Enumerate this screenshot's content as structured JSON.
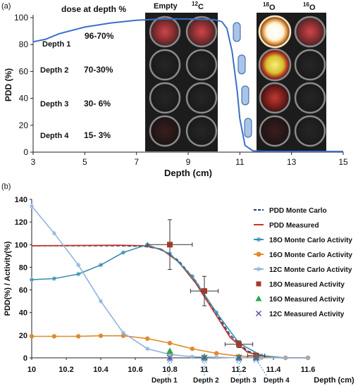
{
  "panel_a": {
    "panel_label": "(a)",
    "header": "dose at depth %",
    "column_labels": {
      "empty": "Empty",
      "c12": "12C",
      "o18": "18O",
      "o16": "16O"
    },
    "depth_rows": [
      {
        "label": "Depth 1",
        "range": "96-70%"
      },
      {
        "label": "Depth 2",
        "range": "70-30%"
      },
      {
        "label": "Depth 3",
        "range": "30- 6%"
      },
      {
        "label": "Depth 4",
        "range": "15- 3%"
      }
    ]
  },
  "panel_b": {
    "panel_label": "(b)",
    "depth_markers": [
      "Depth 1",
      "Depth 2",
      "Depth 3",
      "Depth 4"
    ]
  },
  "chart_data": [
    {
      "type": "line",
      "xlabel": "Depth (cm)",
      "ylabel": "PDD (%)",
      "xlim": [
        3,
        15
      ],
      "ylim": [
        0,
        100
      ],
      "xticks": [
        3,
        5,
        7,
        9,
        11,
        13,
        15
      ],
      "yticks": [
        0,
        20,
        40,
        60,
        80,
        100
      ],
      "series": [
        {
          "color": "#3b6fcc",
          "x": [
            3,
            3.5,
            4,
            5,
            6,
            7,
            8,
            9,
            10,
            10.3,
            10.5,
            10.7,
            10.9,
            11.0,
            11.2,
            11.5,
            12,
            15
          ],
          "y": [
            82,
            84,
            88,
            93,
            96,
            98,
            99,
            99,
            98.5,
            97,
            92,
            75,
            45,
            25,
            5,
            1,
            0.5,
            0.5
          ]
        }
      ]
    },
    {
      "type": "line",
      "xlabel": "Depth (cm)",
      "ylabel": "PDD(%) / Activity(%)",
      "xlim": [
        10,
        11.6
      ],
      "ylim": [
        0,
        140
      ],
      "xticks": [
        "10",
        "10.2",
        "10.4",
        "10.6",
        "10.8",
        "11",
        "11.2",
        "11.4",
        "11.6"
      ],
      "yticks": [
        "0",
        "20",
        "40",
        "60",
        "80",
        "100",
        "120",
        "140"
      ],
      "legend_position": "right",
      "series": [
        {
          "name": "PDD Monte Carlo",
          "color": "#1f3d7a",
          "dash": true,
          "x": [
            10,
            10.5,
            10.65,
            10.75,
            10.85,
            10.95,
            11.05,
            11.15,
            11.25,
            11.35,
            11.45,
            11.6
          ],
          "y": [
            99,
            99,
            98.5,
            96,
            86,
            68,
            44,
            20,
            6,
            1,
            0,
            0
          ]
        },
        {
          "name": "PDD Measured",
          "color": "#c0392b",
          "x": [
            10,
            10.5,
            10.65,
            10.75,
            10.85,
            10.95,
            11.05,
            11.15,
            11.25,
            11.35,
            11.45,
            11.6
          ],
          "y": [
            99,
            99.5,
            99,
            96,
            85,
            66,
            42,
            18,
            5,
            1,
            0,
            0
          ]
        },
        {
          "name": "18O Monte Carlo Activity",
          "color": "#3a8fb0",
          "marker": "star",
          "x": [
            10,
            10.13,
            10.27,
            10.4,
            10.53,
            10.67,
            10.8,
            10.93,
            11.07,
            11.2,
            11.33,
            11.47,
            11.6
          ],
          "y": [
            69,
            70,
            74,
            82,
            93,
            100,
            92,
            72,
            40,
            13,
            2,
            0,
            0
          ]
        },
        {
          "name": "16O Monte Carlo Activity",
          "color": "#e08a2e",
          "marker": "circle",
          "x": [
            10,
            10.13,
            10.27,
            10.4,
            10.53,
            10.67,
            10.8,
            10.93,
            11.07,
            11.2,
            11.33,
            11.47,
            11.6
          ],
          "y": [
            19,
            19,
            19,
            19.5,
            19.5,
            17,
            13,
            8,
            4,
            1.5,
            0.5,
            0,
            0
          ]
        },
        {
          "name": "12C Monte Carlo Activity",
          "color": "#8fb3dd",
          "marker": "star",
          "x": [
            10,
            10.13,
            10.27,
            10.4,
            10.53,
            10.67,
            10.8,
            10.93,
            11.07,
            11.2,
            11.33,
            11.47,
            11.6
          ],
          "y": [
            134,
            110,
            82,
            50,
            22,
            8,
            3,
            1,
            0.5,
            0,
            0,
            0,
            0
          ]
        },
        {
          "name": "18O Measured Activity",
          "color": "#a33a2a",
          "marker": "square",
          "x": [
            10.8,
            11.0,
            11.2,
            11.3
          ],
          "y": [
            100,
            59,
            12,
            2
          ],
          "xerr": [
            0.13,
            0.08,
            0.08,
            0.05
          ],
          "yerr": [
            22,
            13,
            3,
            1
          ]
        },
        {
          "name": "16O Measured Activity",
          "color": "#2aa84a",
          "marker": "triangle",
          "x": [
            10.8,
            11.0,
            11.2,
            11.3
          ],
          "y": [
            6,
            1,
            0.5,
            0.2
          ]
        },
        {
          "name": "12C Measured Activity",
          "color": "#6a4aa0",
          "marker": "x",
          "x": [
            10.8,
            11.0,
            11.2,
            11.3
          ],
          "y": [
            0.2,
            0.1,
            0.1,
            0
          ]
        }
      ]
    }
  ]
}
